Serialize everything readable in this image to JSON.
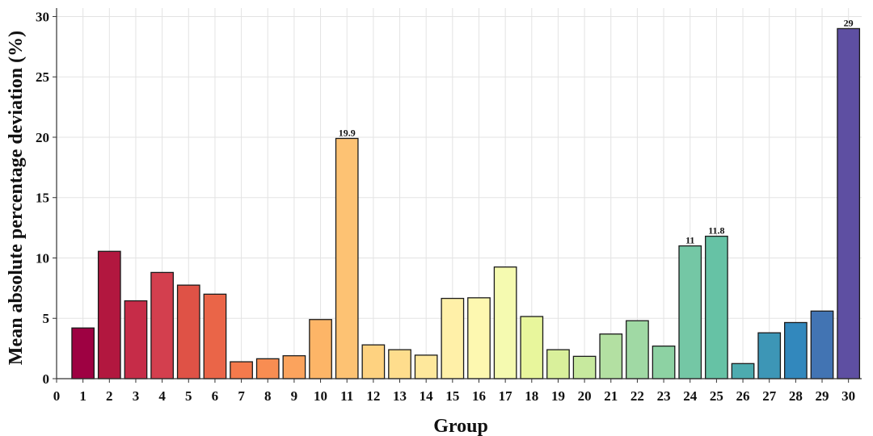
{
  "chart_data": {
    "type": "bar",
    "xlabel": "Group",
    "ylabel": "Mean absolute percentage deviation (%)",
    "xlim": [
      0,
      30.5
    ],
    "ylim": [
      0,
      30.7
    ],
    "xticks": [
      "0",
      "1",
      "2",
      "3",
      "4",
      "5",
      "6",
      "7",
      "8",
      "9",
      "10",
      "11",
      "12",
      "13",
      "14",
      "15",
      "16",
      "17",
      "18",
      "19",
      "20",
      "21",
      "22",
      "23",
      "24",
      "25",
      "26",
      "27",
      "28",
      "29",
      "30"
    ],
    "yticks": [
      "0",
      "5",
      "10",
      "15",
      "20",
      "25",
      "30"
    ],
    "grid": true,
    "categories": [
      1,
      2,
      3,
      4,
      5,
      6,
      7,
      8,
      9,
      10,
      11,
      12,
      13,
      14,
      15,
      16,
      17,
      18,
      19,
      20,
      21,
      22,
      23,
      24,
      25,
      26,
      27,
      28,
      29,
      30
    ],
    "values": [
      4.2,
      10.55,
      6.45,
      8.8,
      7.75,
      7.0,
      1.4,
      1.65,
      1.9,
      4.9,
      19.9,
      2.8,
      2.4,
      1.95,
      6.65,
      6.7,
      9.25,
      5.15,
      2.4,
      1.85,
      3.7,
      4.8,
      2.7,
      11.0,
      11.8,
      1.25,
      3.8,
      4.65,
      5.6,
      29.0
    ],
    "data_labels": [
      {
        "index": 10,
        "text": "19.9"
      },
      {
        "index": 23,
        "text": "11"
      },
      {
        "index": 24,
        "text": "11.8"
      },
      {
        "index": 29,
        "text": "29"
      }
    ],
    "colors": [
      "#9e0142",
      "#b2173f",
      "#c62c48",
      "#d33f4e",
      "#df5246",
      "#ea6548",
      "#f47a4c",
      "#f88d52",
      "#fba35d",
      "#fdb567",
      "#fdc273",
      "#fed280",
      "#fedd8d",
      "#fee89c",
      "#fff0a8",
      "#fdf8b0",
      "#f5fab0",
      "#e8f69c",
      "#d9f09b",
      "#c7e99e",
      "#b3e0a2",
      "#a0d9a4",
      "#8dd2a3",
      "#74c7a5",
      "#66c2a5",
      "#4dabaf",
      "#3d96b6",
      "#3288bd",
      "#4274b3",
      "#5e4fa2"
    ]
  }
}
